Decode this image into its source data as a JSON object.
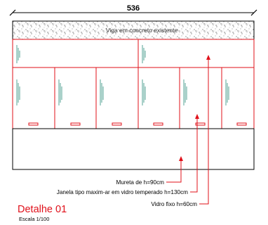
{
  "dimension": {
    "total_width": "536"
  },
  "beam": {
    "label": "Viga em concreto existente"
  },
  "callouts": {
    "mureta": "Mureta de  h=90cm",
    "janela": "Janela tipo maxim-ar em vidro temperado h=130cm",
    "vidro": "Vidro fixo h=60cm"
  },
  "title": {
    "name": "Detalhe 01",
    "scale": "Escala  1/100"
  },
  "colors": {
    "frame": "#e0101a",
    "outline": "#000000",
    "glass_mark": "#2a8c7a",
    "handle": "#e0101a"
  }
}
